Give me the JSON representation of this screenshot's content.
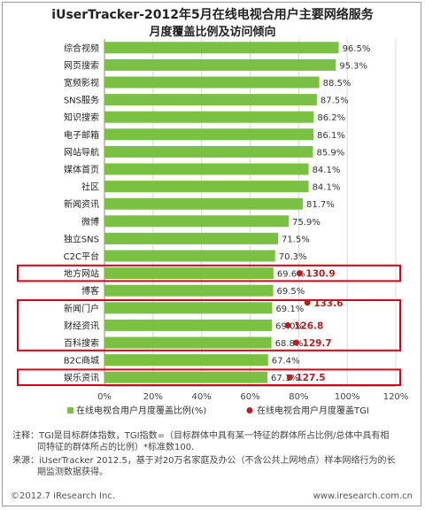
{
  "title_line1": "iUserTracker-2012年5月在线电视合用户主要网络服务",
  "title_line2": "月度覆盖比例及访问倾向",
  "chart_data": {
    "type": "bar",
    "orientation": "horizontal",
    "categories": [
      "综合视频",
      "网页搜索",
      "宽频影视",
      "SNS服务",
      "知识搜索",
      "电子邮箱",
      "网站导航",
      "媒体首页",
      "社区",
      "新闻资讯",
      "微博",
      "独立SNS",
      "C2C平台",
      "地方网站",
      "博客",
      "新闻门户",
      "财经资讯",
      "百科搜索",
      "B2C商城",
      "娱乐资讯"
    ],
    "series": [
      {
        "name": "在线电视合用户月度覆盖比例(%)",
        "values": [
          96.5,
          95.3,
          88.5,
          87.5,
          86.2,
          86.1,
          85.9,
          84.1,
          84.1,
          81.7,
          75.9,
          71.5,
          70.3,
          69.6,
          69.5,
          69.1,
          69.0,
          68.8,
          67.4,
          67.1
        ],
        "value_labels": [
          "96.5%",
          "95.3%",
          "88.5%",
          "87.5%",
          "86.2%",
          "86.1%",
          "85.9%",
          "84.1%",
          "84.1%",
          "81.7%",
          "75.9%",
          "71.5%",
          "70.3%",
          "69.6%",
          "69.5%",
          "69.1%",
          "69.0%",
          "68.8%",
          "67.4%",
          "67.1%"
        ]
      },
      {
        "name": "在线电视合用户月度覆盖TGI",
        "points": [
          {
            "category": "地方网站",
            "value": 130.9
          },
          {
            "category": "新闻门户",
            "value": 133.6
          },
          {
            "category": "财经资讯",
            "value": 126.8
          },
          {
            "category": "百科搜索",
            "value": 129.7
          },
          {
            "category": "娱乐资讯",
            "value": 127.5
          }
        ]
      }
    ],
    "xlim": [
      0,
      120
    ],
    "xticks": [
      "0%",
      "20%",
      "40%",
      "60%",
      "80%",
      "100%",
      "120%"
    ],
    "highlight_groups": [
      [
        "地方网站"
      ],
      [
        "新闻门户",
        "财经资讯",
        "百科搜索"
      ],
      [
        "娱乐资讯"
      ]
    ],
    "colors": {
      "bar": "#7ac143",
      "tgi": "#b22222",
      "highlight": "#d0021b",
      "grid": "#d8d8d8"
    },
    "legend": {
      "position": "bottom",
      "entries": [
        "在线电视合用户月度覆盖比例(%)",
        "在线电视合用户月度覆盖TGI"
      ]
    }
  },
  "notes": {
    "note_line1": "注释：TGI是目标群体指数，TGI指数=（目标群体中具有某一特征的群体所占比例/总体中具有相",
    "note_line2": "同特征的群体所占的比例）*标准数100.",
    "source_line1": "来源：iUserTracker 2012.5，基于对20万名家庭及办公（不含公共上网地点）样本网络行为的长",
    "source_line2": "期监测数据获得。"
  },
  "footer": {
    "copyright": "©2012.7 iResearch Inc.",
    "website": "www.iresearch.com.cn"
  }
}
